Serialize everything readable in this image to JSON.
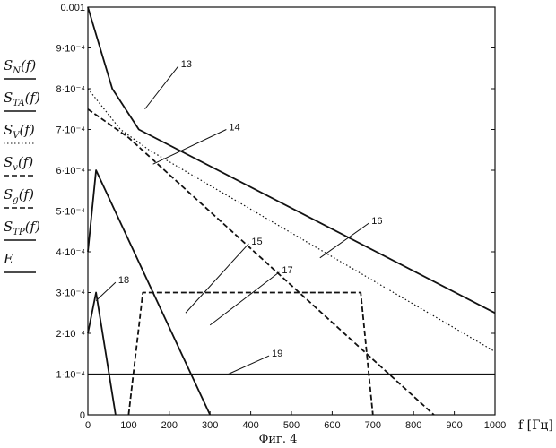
{
  "chart_data": {
    "type": "line",
    "caption": "Фиг. 4",
    "xlabel": "f [Гц]",
    "xlim": [
      0,
      1000
    ],
    "ylim": [
      0,
      0.001
    ],
    "x_ticks": [
      "0",
      "100",
      "200",
      "300",
      "400",
      "500",
      "600",
      "700",
      "800",
      "900",
      "1000"
    ],
    "y_ticks": [
      "0",
      "1·10⁻⁴",
      "2·10⁻⁴",
      "3·10⁻⁴",
      "4·10⁻⁴",
      "5·10⁻⁴",
      "6·10⁻⁴",
      "7·10⁻⁴",
      "8·10⁻⁴",
      "9·10⁻⁴",
      "0.001"
    ],
    "grid": false,
    "legend_position": "left",
    "legend": [
      {
        "label": "S_N(f)",
        "main": "S",
        "sub": "N",
        "tail": "(f)",
        "style": "solid"
      },
      {
        "label": "S_TA(f)",
        "main": "S",
        "sub": "TA",
        "tail": "(f)",
        "style": "solid"
      },
      {
        "label": "S_V(f)",
        "main": "S",
        "sub": "V",
        "tail": "(f)",
        "style": "dotted"
      },
      {
        "label": "S_v(f)",
        "main": "S",
        "sub": "v",
        "tail": "(f)",
        "style": "dashed"
      },
      {
        "label": "S_g(f)",
        "main": "S",
        "sub": "g",
        "tail": "(f)",
        "style": "dashed"
      },
      {
        "label": "S_TP(f)",
        "main": "S",
        "sub": "TP",
        "tail": "(f)",
        "style": "solid"
      },
      {
        "label": "E",
        "main": "E",
        "sub": "",
        "tail": "",
        "style": "solid"
      }
    ],
    "series": [
      {
        "style": "solid",
        "weight": 1.8,
        "x": [
          0,
          60,
          125,
          1000
        ],
        "y": [
          0.001,
          0.0008,
          0.0007,
          0.00025
        ]
      },
      {
        "style": "dotted",
        "weight": 1.2,
        "x": [
          0,
          80,
          150,
          1000
        ],
        "y": [
          0.0008,
          0.0007,
          0.00065,
          0.000155
        ]
      },
      {
        "style": "dashed",
        "weight": 1.8,
        "x": [
          0,
          100,
          850
        ],
        "y": [
          0.00075,
          0.00068,
          0.0
        ]
      },
      {
        "style": "solid",
        "weight": 1.8,
        "x": [
          0,
          20,
          300
        ],
        "y": [
          0.0004,
          0.0006,
          0.0
        ]
      },
      {
        "style": "dashed",
        "weight": 1.8,
        "x": [
          100,
          135,
          670,
          700
        ],
        "y": [
          0.0,
          0.0003,
          0.0003,
          0.0
        ]
      },
      {
        "style": "solid",
        "weight": 1.8,
        "x": [
          0,
          20,
          68
        ],
        "y": [
          0.0002,
          0.0003,
          0.0
        ]
      },
      {
        "style": "solid",
        "weight": 1.2,
        "x": [
          0,
          1000
        ],
        "y": [
          0.0001,
          0.0001
        ]
      }
    ],
    "annotations": [
      {
        "text": "13",
        "at": [
          140,
          0.00075
        ],
        "label_at": [
          222,
          0.000855
        ]
      },
      {
        "text": "14",
        "at": [
          160,
          0.000615
        ],
        "label_at": [
          340,
          0.0007
        ]
      },
      {
        "text": "15",
        "at": [
          240,
          0.00025
        ],
        "label_at": [
          395,
          0.00042
        ]
      },
      {
        "text": "16",
        "at": [
          570,
          0.000385
        ],
        "label_at": [
          690,
          0.00047
        ]
      },
      {
        "text": "17",
        "at": [
          300,
          0.00022
        ],
        "label_at": [
          470,
          0.00035
        ]
      },
      {
        "text": "18",
        "at": [
          20,
          0.00028
        ],
        "label_at": [
          68,
          0.000325
        ]
      },
      {
        "text": "19",
        "at": [
          345,
          0.0001
        ],
        "label_at": [
          445,
          0.000145
        ]
      }
    ]
  }
}
